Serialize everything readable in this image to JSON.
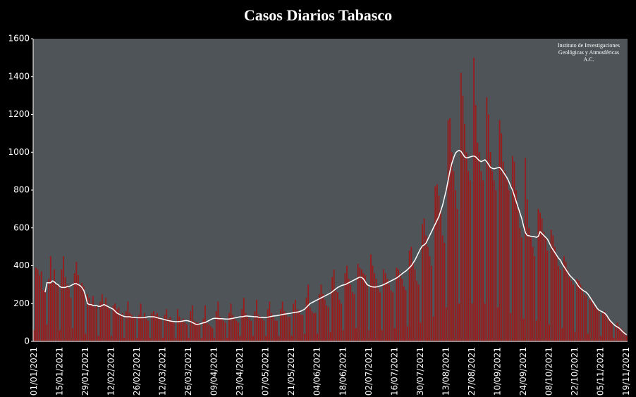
{
  "chart_data": {
    "type": "bar",
    "title": "Casos Diarios Tabasco",
    "annotation": [
      "Instituto de Investigaciones",
      "Geológicas y Atmosféricas",
      "A.C."
    ],
    "background": "#4e5457",
    "categories": [
      "01/01/2021",
      null,
      null,
      null,
      null,
      null,
      null,
      null,
      null,
      null,
      null,
      null,
      null,
      null,
      "15/01/2021",
      null,
      null,
      null,
      null,
      null,
      null,
      null,
      null,
      null,
      null,
      null,
      null,
      null,
      "29/01/2021",
      null,
      null,
      null,
      null,
      null,
      null,
      null,
      null,
      null,
      null,
      null,
      null,
      null,
      "12/02/2021",
      null,
      null,
      null,
      null,
      null,
      null,
      null,
      null,
      null,
      null,
      null,
      null,
      null,
      "26/02/2021",
      null,
      null,
      null,
      null,
      null,
      null,
      null,
      null,
      null,
      null,
      null,
      null,
      null,
      "12/03/2021",
      null,
      null,
      null,
      null,
      null,
      null,
      null,
      null,
      null,
      null,
      null,
      null,
      null,
      "26/03/2021",
      null,
      null,
      null,
      null,
      null,
      null,
      null,
      null,
      null,
      null,
      null,
      null,
      null,
      "09/04/2021",
      null,
      null,
      null,
      null,
      null,
      null,
      null,
      null,
      null,
      null,
      null,
      null,
      null,
      "23/04/2021",
      null,
      null,
      null,
      null,
      null,
      null,
      null,
      null,
      null,
      null,
      null,
      null,
      null,
      "07/05/2021",
      null,
      null,
      null,
      null,
      null,
      null,
      null,
      null,
      null,
      null,
      null,
      null,
      null,
      "21/05/2021",
      null,
      null,
      null,
      null,
      null,
      null,
      null,
      null,
      null,
      null,
      null,
      null,
      null,
      "04/06/2021",
      null,
      null,
      null,
      null,
      null,
      null,
      null,
      null,
      null,
      null,
      null,
      null,
      null,
      "18/06/2021",
      null,
      null,
      null,
      null,
      null,
      null,
      null,
      null,
      null,
      null,
      null,
      null,
      null,
      "02/07/2021",
      null,
      null,
      null,
      null,
      null,
      null,
      null,
      null,
      null,
      null,
      null,
      null,
      null,
      "16/07/2021",
      null,
      null,
      null,
      null,
      null,
      null,
      null,
      null,
      null,
      null,
      null,
      null,
      null,
      "30/07/2021",
      null,
      null,
      null,
      null,
      null,
      null,
      null,
      null,
      null,
      null,
      null,
      null,
      null,
      "13/08/2021",
      null,
      null,
      null,
      null,
      null,
      null,
      null,
      null,
      null,
      null,
      null,
      null,
      null,
      "27/08/2021",
      null,
      null,
      null,
      null,
      null,
      null,
      null,
      null,
      null,
      null,
      null,
      null,
      null,
      "10/09/2021",
      null,
      null,
      null,
      null,
      null,
      null,
      null,
      null,
      null,
      null,
      null,
      null,
      null,
      "24/09/2021",
      null,
      null,
      null,
      null,
      null,
      null,
      null,
      null,
      null,
      null,
      null,
      null,
      null,
      "08/10/2021",
      null,
      null,
      null,
      null,
      null,
      null,
      null,
      null,
      null,
      null,
      null,
      null,
      null,
      "22/10/2021",
      null,
      null,
      null,
      null,
      null,
      null,
      null,
      null,
      null,
      null,
      null,
      null,
      null,
      "05/11/2021",
      null,
      null,
      null,
      null,
      null,
      null,
      null,
      null,
      null,
      null,
      null,
      null,
      null,
      "19/11/2021"
    ],
    "series": [
      {
        "type": "bar",
        "color": "#9b1c1c",
        "values": [
          60,
          390,
          380,
          350,
          370,
          270,
          280,
          90,
          330,
          450,
          310,
          380,
          300,
          300,
          60,
          380,
          450,
          340,
          300,
          280,
          230,
          70,
          360,
          420,
          350,
          300,
          310,
          290,
          40,
          250,
          230,
          200,
          240,
          180,
          190,
          30,
          210,
          250,
          200,
          230,
          190,
          170,
          30,
          190,
          200,
          170,
          180,
          140,
          150,
          20,
          160,
          210,
          150,
          140,
          130,
          130,
          20,
          140,
          200,
          130,
          150,
          120,
          110,
          20,
          150,
          160,
          140,
          150,
          130,
          120,
          20,
          140,
          170,
          120,
          130,
          110,
          100,
          20,
          170,
          130,
          110,
          120,
          100,
          90,
          20,
          160,
          190,
          110,
          100,
          100,
          90,
          20,
          120,
          190,
          100,
          90,
          80,
          70,
          20,
          160,
          210,
          130,
          120,
          110,
          100,
          20,
          150,
          200,
          140,
          120,
          110,
          100,
          30,
          170,
          230,
          150,
          130,
          120,
          110,
          30,
          160,
          220,
          140,
          130,
          120,
          110,
          30,
          170,
          210,
          150,
          130,
          110,
          110,
          30,
          170,
          210,
          160,
          150,
          130,
          130,
          30,
          200,
          220,
          170,
          160,
          140,
          140,
          40,
          230,
          300,
          180,
          160,
          150,
          150,
          40,
          250,
          300,
          250,
          220,
          190,
          180,
          50,
          340,
          380,
          270,
          260,
          220,
          200,
          60,
          360,
          400,
          330,
          300,
          260,
          250,
          70,
          410,
          390,
          380,
          360,
          350,
          300,
          60,
          460,
          400,
          360,
          330,
          280,
          260,
          60,
          380,
          360,
          330,
          300,
          270,
          260,
          70,
          390,
          380,
          360,
          330,
          290,
          270,
          80,
          480,
          500,
          420,
          380,
          320,
          300,
          100,
          620,
          650,
          560,
          500,
          450,
          400,
          130,
          820,
          830,
          770,
          700,
          560,
          520,
          180,
          1170,
          1180,
          1000,
          900,
          800,
          700,
          200,
          1420,
          1300,
          1150,
          1000,
          900,
          850,
          200,
          1500,
          1250,
          1050,
          1000,
          900,
          850,
          200,
          1290,
          1200,
          1000,
          900,
          850,
          800,
          180,
          1170,
          1100,
          950,
          900,
          850,
          800,
          150,
          980,
          950,
          800,
          700,
          600,
          550,
          120,
          970,
          750,
          600,
          550,
          500,
          450,
          110,
          700,
          680,
          650,
          580,
          550,
          480,
          90,
          590,
          560,
          500,
          450,
          400,
          380,
          70,
          450,
          420,
          380,
          340,
          320,
          300,
          50,
          330,
          320,
          300,
          280,
          250,
          240,
          40,
          220,
          230,
          200,
          180,
          170,
          160,
          30,
          150,
          160,
          140,
          130,
          110,
          100,
          20,
          90,
          100,
          80,
          70,
          60,
          50,
          30
        ]
      },
      {
        "type": "line",
        "color": "#ffffff",
        "values": [
          null,
          null,
          null,
          null,
          null,
          null,
          260,
          310,
          310,
          310,
          320,
          315,
          305,
          300,
          290,
          285,
          285,
          285,
          290,
          290,
          295,
          300,
          305,
          305,
          300,
          295,
          285,
          270,
          240,
          200,
          195,
          195,
          190,
          190,
          190,
          185,
          185,
          190,
          195,
          190,
          185,
          180,
          175,
          170,
          160,
          150,
          145,
          140,
          135,
          132,
          130,
          130,
          130,
          128,
          127,
          126,
          125,
          125,
          125,
          125,
          126,
          128,
          130,
          130,
          130,
          130,
          128,
          125,
          122,
          120,
          118,
          115,
          112,
          110,
          108,
          106,
          105,
          104,
          104,
          105,
          106,
          108,
          110,
          110,
          108,
          105,
          100,
          95,
          90,
          90,
          92,
          95,
          98,
          100,
          105,
          110,
          115,
          120,
          122,
          122,
          121,
          120,
          120,
          119,
          118,
          118,
          118,
          120,
          122,
          124,
          126,
          128,
          130,
          130,
          132,
          134,
          134,
          133,
          132,
          131,
          130,
          130,
          128,
          127,
          126,
          125,
          127,
          128,
          130,
          132,
          134,
          135,
          136,
          138,
          140,
          142,
          144,
          145,
          147,
          148,
          150,
          152,
          154,
          155,
          157,
          160,
          165,
          170,
          180,
          190,
          200,
          205,
          210,
          215,
          220,
          225,
          230,
          235,
          240,
          245,
          250,
          255,
          262,
          270,
          278,
          285,
          290,
          295,
          298,
          300,
          305,
          310,
          315,
          320,
          325,
          330,
          335,
          340,
          338,
          330,
          315,
          300,
          295,
          290,
          288,
          287,
          288,
          290,
          293,
          296,
          300,
          305,
          310,
          315,
          320,
          325,
          330,
          335,
          342,
          350,
          358,
          365,
          372,
          380,
          390,
          400,
          415,
          430,
          450,
          470,
          490,
          505,
          510,
          520,
          540,
          560,
          580,
          600,
          620,
          640,
          660,
          690,
          720,
          760,
          800,
          850,
          900,
          940,
          970,
          995,
          1005,
          1010,
          1005,
          990,
          975,
          970,
          972,
          975,
          978,
          980,
          975,
          965,
          955,
          950,
          955,
          960,
          950,
          935,
          920,
          915,
          912,
          915,
          918,
          920,
          910,
          895,
          880,
          865,
          845,
          820,
          800,
          770,
          740,
          710,
          680,
          650,
          610,
          575,
          560,
          558,
          556,
          555,
          553,
          550,
          555,
          580,
          570,
          560,
          550,
          540,
          520,
          500,
          485,
          470,
          455,
          440,
          430,
          410,
          395,
          380,
          365,
          350,
          340,
          330,
          320,
          305,
          290,
          280,
          272,
          265,
          260,
          250,
          235,
          220,
          205,
          190,
          175,
          165,
          160,
          155,
          150,
          140,
          125,
          110,
          100,
          90,
          82,
          76,
          70,
          60,
          50,
          42,
          35
        ]
      }
    ],
    "ylim": [
      0,
      1600
    ],
    "yticks": [
      0,
      200,
      400,
      600,
      800,
      1000,
      1200,
      1400,
      1600
    ],
    "grid": false
  }
}
